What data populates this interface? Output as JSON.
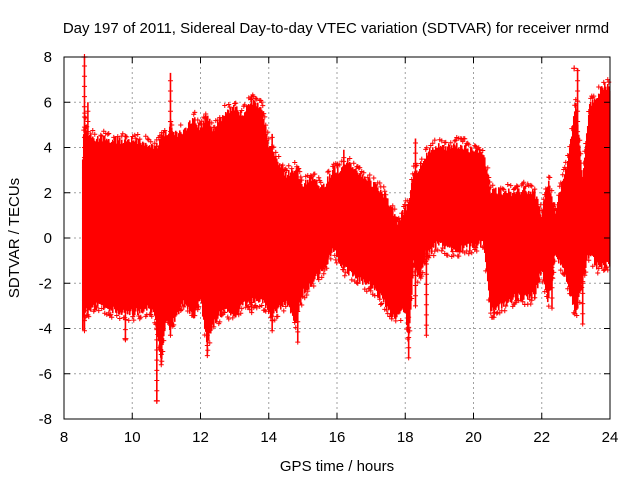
{
  "chart_data": {
    "type": "scatter",
    "title": "Day 197 of 2011, Sidereal Day-to-day VTEC variation (SDTVAR) for receiver nrmd",
    "xlabel": "GPS time / hours",
    "ylabel": "SDTVAR / TECUs",
    "xlim": [
      8,
      24
    ],
    "ylim": [
      -8,
      8
    ],
    "xticks": [
      8,
      10,
      12,
      14,
      16,
      18,
      20,
      22,
      24
    ],
    "yticks": [
      -8,
      -6,
      -4,
      -2,
      0,
      2,
      4,
      6,
      8
    ],
    "grid": true,
    "series_color": "#ff0000",
    "marker": "plus",
    "envelope": {
      "x": [
        8.55,
        8.6,
        8.7,
        9.0,
        9.5,
        10.0,
        10.5,
        10.7,
        10.85,
        11.0,
        11.1,
        11.3,
        11.5,
        11.8,
        12.0,
        12.2,
        12.4,
        12.7,
        13.0,
        13.2,
        13.5,
        13.8,
        14.0,
        14.2,
        14.5,
        14.8,
        15.0,
        15.3,
        15.6,
        15.9,
        16.1,
        16.3,
        16.6,
        17.0,
        17.3,
        17.6,
        17.8,
        18.0,
        18.1,
        18.25,
        18.4,
        18.6,
        18.8,
        19.0,
        19.2,
        19.5,
        19.8,
        20.0,
        20.3,
        20.5,
        20.6,
        20.9,
        21.2,
        21.5,
        21.8,
        22.0,
        22.2,
        22.4,
        22.6,
        22.8,
        23.0,
        23.2,
        23.4,
        23.6,
        23.8,
        24.0
      ],
      "upper": [
        3.5,
        5.5,
        4.6,
        4.6,
        4.5,
        4.5,
        4.3,
        4.1,
        4.7,
        4.8,
        5.0,
        4.8,
        4.9,
        5.5,
        5.0,
        5.6,
        4.9,
        5.7,
        6.0,
        5.6,
        6.2,
        5.9,
        4.3,
        3.7,
        3.0,
        3.2,
        2.5,
        2.8,
        2.4,
        3.2,
        3.2,
        3.6,
        3.1,
        2.6,
        2.3,
        1.5,
        0.8,
        1.5,
        1.6,
        3.2,
        3.2,
        3.8,
        4.2,
        4.2,
        4.2,
        4.3,
        4.2,
        4.0,
        3.9,
        2.3,
        2.3,
        2.2,
        2.2,
        2.3,
        2.2,
        1.2,
        2.8,
        1.3,
        2.6,
        3.8,
        6.2,
        2.7,
        6.0,
        6.3,
        6.9,
        6.8
      ],
      "lower": [
        -4.2,
        -3.3,
        -3.4,
        -3.1,
        -3.4,
        -3.5,
        -3.3,
        -3.7,
        -5.6,
        -3.5,
        -4.2,
        -3.6,
        -3.0,
        -3.6,
        -2.8,
        -4.9,
        -3.9,
        -3.3,
        -3.6,
        -3.2,
        -3.0,
        -2.9,
        -3.5,
        -3.5,
        -3.0,
        -3.9,
        -2.6,
        -2.1,
        -1.6,
        -0.6,
        -1.4,
        -1.6,
        -2.0,
        -2.3,
        -2.8,
        -3.6,
        -3.7,
        -3.3,
        -4.7,
        -1.2,
        -2.0,
        -0.9,
        -0.7,
        -0.3,
        -0.6,
        -0.7,
        -0.6,
        -0.5,
        -0.4,
        -3.4,
        -3.3,
        -3.1,
        -2.8,
        -2.8,
        -2.7,
        -1.6,
        -3.0,
        -0.9,
        -1.4,
        -2.4,
        -3.6,
        -2.0,
        -0.8,
        -1.4,
        -1.4,
        -1.3
      ]
    },
    "spikes": [
      {
        "x": 8.6,
        "y_min": -4.1,
        "y_max": 8.0
      },
      {
        "x": 8.7,
        "y_min": -3.4,
        "y_max": 6.0
      },
      {
        "x": 9.8,
        "y_min": -4.5,
        "y_max": 4.6
      },
      {
        "x": 10.72,
        "y_min": -7.2,
        "y_max": 4.2
      },
      {
        "x": 10.85,
        "y_min": -5.6,
        "y_max": 4.6
      },
      {
        "x": 11.12,
        "y_min": -4.3,
        "y_max": 7.3
      },
      {
        "x": 12.2,
        "y_min": -5.2,
        "y_max": 5.2
      },
      {
        "x": 13.5,
        "y_min": -3.3,
        "y_max": 6.3
      },
      {
        "x": 14.1,
        "y_min": -4.1,
        "y_max": 4.6
      },
      {
        "x": 14.85,
        "y_min": -4.6,
        "y_max": 3.2
      },
      {
        "x": 16.2,
        "y_min": -1.4,
        "y_max": 3.9
      },
      {
        "x": 18.1,
        "y_min": -5.3,
        "y_max": 1.5
      },
      {
        "x": 18.3,
        "y_min": -3.0,
        "y_max": 4.4
      },
      {
        "x": 18.62,
        "y_min": -4.3,
        "y_max": 3.2
      },
      {
        "x": 20.6,
        "y_min": -3.5,
        "y_max": 2.2
      },
      {
        "x": 22.3,
        "y_min": -3.1,
        "y_max": 1.3
      },
      {
        "x": 23.05,
        "y_min": -1.6,
        "y_max": 7.5
      },
      {
        "x": 23.2,
        "y_min": -3.8,
        "y_max": 2.7
      }
    ],
    "outliers": [
      {
        "x": 9.8,
        "y": -4.45
      },
      {
        "x": 10.72,
        "y": -7.2
      },
      {
        "x": 22.95,
        "y": 7.5
      },
      {
        "x": 8.6,
        "y": 8.0
      }
    ]
  }
}
